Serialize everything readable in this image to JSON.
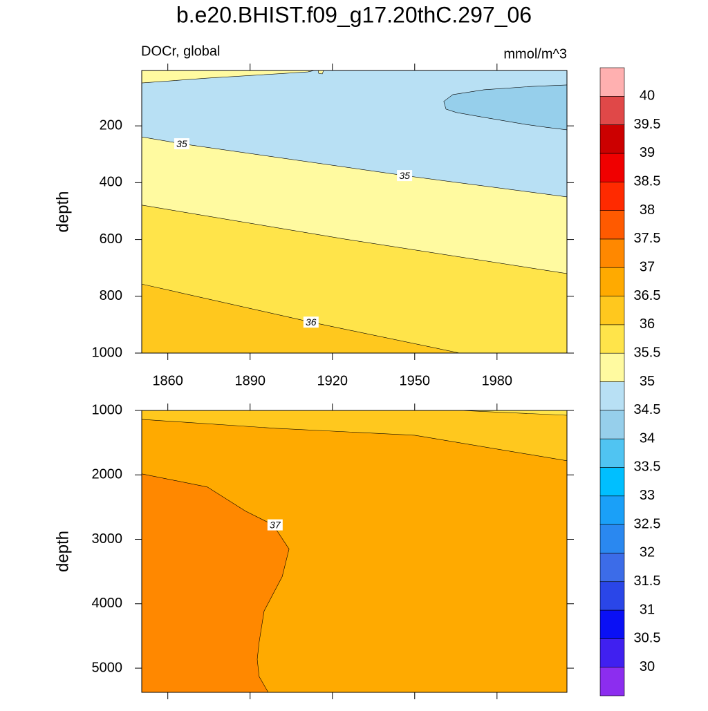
{
  "title": "b.e20.BHIST.f09_g17.20thC.297_06",
  "left_label": "DOCr, global",
  "right_label": "mmol/m^3",
  "chart_data": [
    {
      "type": "contour",
      "ylabel": "depth",
      "y_reversed": true,
      "xlim": [
        1850.5,
        2005.5
      ],
      "ylim": [
        5,
        1000
      ],
      "xticks": [
        1860,
        1890,
        1920,
        1950,
        1980
      ],
      "yticks": [
        200,
        400,
        600,
        800,
        1000
      ],
      "xtick_labels": true,
      "background": "#B8E0F4",
      "regions": [
        {
          "color": "#FFFAA0",
          "x": [
            1850.5,
            1874.4,
            1899.6,
            1911,
            1913.5,
            1850.5
          ],
          "y": [
            49,
            32,
            17,
            10,
            5,
            5
          ]
        },
        {
          "color": "#FFFAA0",
          "x": [
            1914.8,
            1916.8,
            1916.3,
            1915
          ],
          "y": [
            5,
            5,
            17,
            15
          ]
        },
        {
          "color": "#96CFEB",
          "x": [
            2005.5,
            1992.9,
            1975.2,
            1963.9,
            1960.6,
            1961.4,
            1965.2,
            1975.2,
            1990.4,
            1997.9,
            2005.5
          ],
          "y": [
            56,
            61,
            73,
            90,
            114,
            141,
            153,
            170,
            195,
            205,
            214
          ]
        },
        {
          "color": "#FFFAA0",
          "x": [
            1850.5,
            1865.1,
            1946.3,
            2005.5,
            2005.5,
            1850.5
          ],
          "y": [
            239,
            263,
            375,
            450,
            1000,
            1000
          ]
        },
        {
          "color": "#FFE44A",
          "x": [
            1850.5,
            1924.8,
            2005.5,
            2005.5,
            1850.5
          ],
          "y": [
            479,
            599,
            720,
            1000,
            1000
          ]
        },
        {
          "color": "#FFC81E",
          "x": [
            1850.5,
            1912.2,
            1966.4,
            1850.5
          ],
          "y": [
            757,
            891,
            1000,
            1000
          ]
        }
      ],
      "contours": [
        {
          "x": [
            1850.5,
            1874.4,
            1899.6,
            1911,
            1913.5
          ],
          "y": [
            49,
            32,
            17,
            10,
            5
          ]
        },
        {
          "x": [
            1914.8,
            1916.8,
            1916.3,
            1915,
            1914.8
          ],
          "y": [
            5,
            5,
            17,
            15,
            5
          ]
        },
        {
          "x": [
            2005.5,
            1992.9,
            1975.2,
            1963.9,
            1960.6,
            1961.4,
            1965.2,
            1975.2,
            1990.4,
            1997.9,
            2005.5
          ],
          "y": [
            56,
            61,
            73,
            90,
            114,
            141,
            153,
            170,
            195,
            205,
            214
          ]
        },
        {
          "x": [
            1850.5,
            1865.1,
            1946.3,
            2005.5
          ],
          "y": [
            239,
            263,
            375,
            450
          ]
        },
        {
          "x": [
            1850.5,
            1924.8,
            2005.5
          ],
          "y": [
            479,
            599,
            720
          ]
        },
        {
          "x": [
            1850.5,
            1912.2,
            1966.4
          ],
          "y": [
            757,
            891,
            1000
          ]
        }
      ],
      "contour_labels": [
        {
          "text": "35",
          "x": 1865.1,
          "y": 263
        },
        {
          "text": "35",
          "x": 1946.3,
          "y": 375
        },
        {
          "text": "36",
          "x": 1912.2,
          "y": 891
        }
      ]
    },
    {
      "type": "contour",
      "ylabel": "depth",
      "y_reversed": true,
      "xlim": [
        1850.5,
        2005.5
      ],
      "ylim": [
        1000,
        5375
      ],
      "xticks": [
        1860,
        1890,
        1920,
        1950,
        1980
      ],
      "yticks": [
        1000,
        2000,
        3000,
        4000,
        5000
      ],
      "xtick_labels": false,
      "background": "#FFAA00",
      "regions": [
        {
          "color": "#FFC81E",
          "x": [
            1850.5,
            1850.5,
            1899.6,
            1950,
            2005.5,
            2005.5
          ],
          "y": [
            1000,
            1139,
            1278,
            1385,
            1781,
            1000
          ]
        },
        {
          "color": "#FFE44A",
          "x": [
            1966.4,
            2005.5,
            2005.5
          ],
          "y": [
            1000,
            1075,
            1000
          ]
        },
        {
          "color": "#FF8800",
          "x": [
            1850.5,
            1874.4,
            1888.3,
            1898.4,
            1904.2,
            1901.7,
            1895.1,
            1893.3,
            1892.6,
            1893.3,
            1896.6,
            1850.5
          ],
          "y": [
            1984,
            2188,
            2562,
            2776,
            3151,
            3579,
            4114,
            4595,
            4863,
            5130,
            5375,
            5375
          ]
        }
      ],
      "contours": [
        {
          "x": [
            1850.5,
            1899.6,
            1950,
            2005.5
          ],
          "y": [
            1139,
            1278,
            1385,
            1781
          ]
        },
        {
          "x": [
            1966.4,
            2005.5
          ],
          "y": [
            1000,
            1075
          ]
        },
        {
          "x": [
            1850.5,
            1874.4,
            1888.3,
            1898.4,
            1904.2,
            1901.7,
            1895.1,
            1893.3,
            1892.6,
            1893.3,
            1896.6
          ],
          "y": [
            1984,
            2188,
            2562,
            2776,
            3151,
            3579,
            4114,
            4595,
            4863,
            5130,
            5375
          ]
        }
      ],
      "contour_labels": [
        {
          "text": "37",
          "x": 1899.1,
          "y": 2776
        }
      ]
    }
  ],
  "colorbar": {
    "levels": [
      30,
      30.5,
      31,
      31.5,
      32,
      32.5,
      33,
      33.5,
      34,
      34.5,
      35,
      35.5,
      36,
      36.5,
      37,
      37.5,
      38,
      38.5,
      39,
      39.5,
      40
    ],
    "colors": [
      "#8C2DEF",
      "#4020F0",
      "#0A10F5",
      "#2A46E8",
      "#3C6CE8",
      "#2A88F0",
      "#1AA0F8",
      "#00BFFF",
      "#50C4F2",
      "#96CFEB",
      "#B8E0F4",
      "#FFFAA0",
      "#FFE44A",
      "#FFC81E",
      "#FFAA00",
      "#FF8800",
      "#FF5A00",
      "#FF2A00",
      "#F00000",
      "#CC0000",
      "#E04848",
      "#FFB0B0"
    ]
  }
}
